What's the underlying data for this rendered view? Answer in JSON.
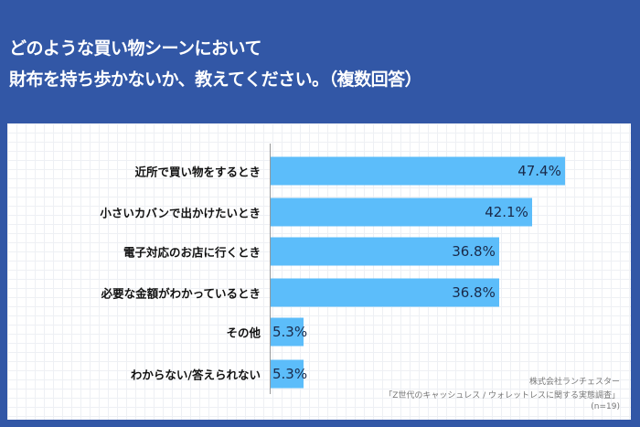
{
  "title_line1": "どのような買い物シーンにおいて",
  "title_line2": "財布を持ち歩かないか、教えてください。（複数回答）",
  "colors": {
    "background": "#3257a6",
    "bar": "#5cbdfa"
  },
  "chart_data": {
    "type": "bar",
    "orientation": "horizontal",
    "categories": [
      "近所で買い物をするとき",
      "小さいカバンで出かけたいとき",
      "電子対応のお店に行くとき",
      "必要な金額がわかっているとき",
      "その他",
      "わからない/答えられない"
    ],
    "values": [
      47.4,
      42.1,
      36.8,
      36.8,
      5.3,
      5.3
    ],
    "value_labels": [
      "47.4%",
      "42.1%",
      "36.8%",
      "36.8%",
      "5.3%",
      "5.3%"
    ],
    "unit": "%",
    "xlim": [
      0,
      100
    ]
  },
  "source": {
    "company": "株式会社ランチェスター",
    "survey": "「Z世代のキャッシュレス / ウォレットレスに関する実態調査」",
    "sample": "(n=19)"
  }
}
